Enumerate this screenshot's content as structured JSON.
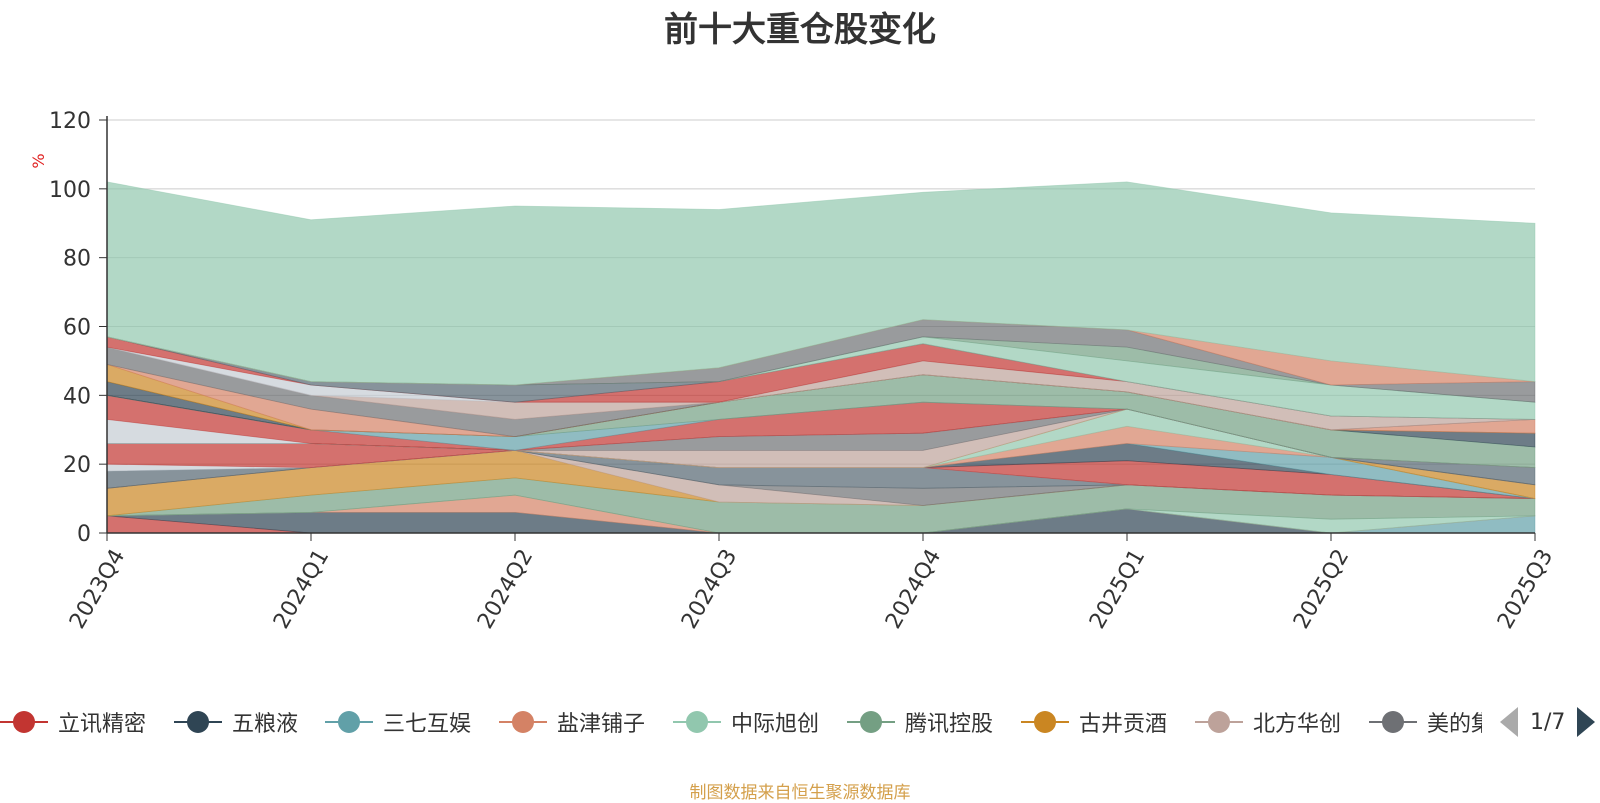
{
  "title": "前十大重仓股变化",
  "footer": "制图数据来自恒生聚源数据库",
  "legend": {
    "items": [
      {
        "name": "立讯精密",
        "color": "#c23531"
      },
      {
        "name": "五粮液",
        "color": "#2f4554"
      },
      {
        "name": "三七互娱",
        "color": "#61a0a8"
      },
      {
        "name": "盐津铺子",
        "color": "#d48265"
      },
      {
        "name": "中际旭创",
        "color": "#91c7ae"
      },
      {
        "name": "腾讯控股",
        "color": "#749f83"
      },
      {
        "name": "古井贡酒",
        "color": "#ca8622"
      },
      {
        "name": "北方华创",
        "color": "#bda29a"
      },
      {
        "name": "美的集团",
        "color": "#6e7074"
      }
    ],
    "pager": "1/7"
  },
  "chart_data": {
    "type": "area",
    "stacked": true,
    "title": "前十大重仓股变化",
    "ylabel": "%",
    "ylim": [
      0,
      120
    ],
    "yticks": [
      0,
      20,
      40,
      60,
      80,
      100,
      120
    ],
    "x": [
      "2023Q4",
      "2024Q1",
      "2024Q2",
      "2024Q3",
      "2024Q4",
      "2025Q1",
      "2025Q2",
      "2025Q3"
    ],
    "series": [
      {
        "color": "#c23531",
        "values": [
          5,
          0,
          0,
          0,
          0,
          0,
          0,
          0
        ]
      },
      {
        "color": "#2f4554",
        "values": [
          0,
          6,
          6,
          0,
          0,
          7,
          0,
          0
        ]
      },
      {
        "color": "#61a0a8",
        "values": [
          0,
          0,
          0,
          0,
          0,
          0,
          0,
          5
        ]
      },
      {
        "color": "#d48265",
        "values": [
          0,
          0,
          5,
          0,
          0,
          0,
          0,
          0
        ]
      },
      {
        "color": "#91c7ae",
        "values": [
          0,
          0,
          0,
          0,
          0,
          0,
          4,
          0
        ]
      },
      {
        "color": "#749f83",
        "values": [
          0,
          5,
          5,
          9,
          8,
          7,
          7,
          5
        ]
      },
      {
        "color": "#ca8622",
        "values": [
          8,
          8,
          8,
          0,
          0,
          0,
          0,
          0
        ]
      },
      {
        "color": "#bda29a",
        "values": [
          0,
          0,
          0,
          5,
          0,
          0,
          0,
          0
        ]
      },
      {
        "color": "#6e7074",
        "values": [
          0,
          0,
          0,
          0,
          5,
          0,
          0,
          0
        ]
      },
      {
        "color": "#546570",
        "values": [
          5,
          0,
          0,
          5,
          6,
          0,
          0,
          0
        ]
      },
      {
        "color": "#c4ccd3",
        "values": [
          2,
          0,
          0,
          0,
          0,
          0,
          0,
          0
        ]
      },
      {
        "color": "#c23531",
        "values": [
          6,
          7,
          0,
          0,
          0,
          7,
          6,
          0
        ]
      },
      {
        "color": "#2f4554",
        "values": [
          0,
          0,
          0,
          0,
          0,
          5,
          0,
          0
        ]
      },
      {
        "color": "#61a0a8",
        "values": [
          0,
          0,
          0,
          0,
          0,
          0,
          5,
          0
        ]
      },
      {
        "color": "#d48265",
        "values": [
          0,
          0,
          0,
          0,
          0,
          5,
          0,
          0
        ]
      },
      {
        "color": "#91c7ae",
        "values": [
          0,
          0,
          0,
          0,
          0,
          5,
          0,
          0
        ]
      },
      {
        "color": "#ca8622",
        "values": [
          0,
          0,
          0,
          0,
          0,
          0,
          0,
          4
        ]
      },
      {
        "color": "#bda29a",
        "values": [
          0,
          0,
          0,
          5,
          5,
          0,
          0,
          0
        ]
      },
      {
        "color": "#6e7074",
        "values": [
          0,
          0,
          0,
          4,
          5,
          0,
          0,
          0
        ]
      },
      {
        "color": "#546570",
        "values": [
          0,
          0,
          0,
          0,
          0,
          0,
          0,
          5
        ]
      },
      {
        "color": "#c4ccd3",
        "values": [
          7,
          0,
          0,
          0,
          0,
          0,
          0,
          0
        ]
      },
      {
        "color": "#c23531",
        "values": [
          7,
          4,
          0,
          5,
          9,
          0,
          0,
          0
        ]
      },
      {
        "color": "#61a0a8",
        "values": [
          0,
          0,
          4,
          0,
          0,
          0,
          0,
          0
        ]
      },
      {
        "color": "#749f83",
        "values": [
          0,
          0,
          0,
          5,
          8,
          5,
          8,
          6
        ]
      },
      {
        "color": "#2f4554",
        "values": [
          4,
          0,
          0,
          0,
          0,
          0,
          0,
          4
        ]
      },
      {
        "color": "#ca8622",
        "values": [
          5,
          0,
          0,
          0,
          0,
          0,
          0,
          0
        ]
      },
      {
        "color": "#d48265",
        "values": [
          0,
          6,
          0,
          0,
          0,
          0,
          0,
          4
        ]
      },
      {
        "color": "#6e7074",
        "values": [
          5,
          4,
          5,
          0,
          0,
          0,
          0,
          0
        ]
      },
      {
        "color": "#bda29a",
        "values": [
          0,
          0,
          5,
          0,
          4,
          3,
          4,
          0
        ]
      },
      {
        "color": "#c4ccd3",
        "values": [
          0,
          3,
          0,
          0,
          0,
          0,
          0,
          0
        ]
      },
      {
        "color": "#c23531",
        "values": [
          3,
          0,
          0,
          6,
          5,
          0,
          0,
          0
        ]
      },
      {
        "color": "#546570",
        "values": [
          0,
          1,
          5,
          0,
          0,
          0,
          0,
          0
        ]
      },
      {
        "color": "#91c7ae",
        "values": [
          0,
          0,
          0,
          0,
          2,
          6,
          9,
          5
        ]
      },
      {
        "color": "#749f83",
        "values": [
          0,
          0,
          0,
          0,
          0,
          4,
          0,
          0
        ]
      },
      {
        "color": "#6e7074",
        "values": [
          0,
          0,
          0,
          4,
          5,
          5,
          0,
          6
        ]
      },
      {
        "color": "#d48265",
        "values": [
          0,
          0,
          0,
          0,
          0,
          0,
          7,
          0
        ]
      },
      {
        "color": "#91c7ae",
        "values": [
          45,
          47,
          52,
          46,
          37,
          43,
          43,
          46
        ]
      }
    ]
  }
}
